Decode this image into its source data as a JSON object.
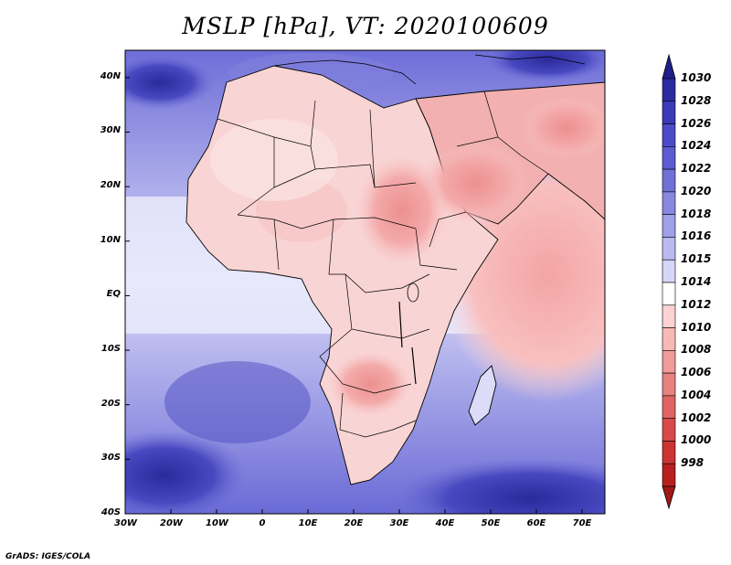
{
  "map": {
    "title": "MSLP [hPa], VT: 2020100609",
    "credit": "GrADS: IGES/COLA",
    "lon_labels": [
      "30W",
      "20W",
      "10W",
      "0",
      "10E",
      "20E",
      "30E",
      "40E",
      "50E",
      "60E",
      "70E"
    ],
    "lat_labels": [
      "40N",
      "30N",
      "20N",
      "10N",
      "EQ",
      "10S",
      "20S",
      "30S",
      "40S"
    ],
    "lon_range": [
      -30,
      75
    ],
    "lat_range": [
      -40,
      45
    ],
    "features": [
      "Africa coastline",
      "country borders",
      "Arabian Peninsula",
      "Madagascar",
      "Mediterranean"
    ]
  },
  "colorbar": {
    "labels": [
      "1030",
      "1028",
      "1026",
      "1024",
      "1022",
      "1020",
      "1018",
      "1016",
      "1015",
      "1014",
      "1012",
      "1010",
      "1008",
      "1006",
      "1004",
      "1002",
      "1000",
      "998"
    ],
    "colors": [
      "#2b2ba0",
      "#3b3bb8",
      "#4b4bc8",
      "#5c5cd0",
      "#7070d8",
      "#8888e0",
      "#a0a0e8",
      "#babaf0",
      "#d6d6f8",
      "#ffffff",
      "#fcd2d2",
      "#f8b8b8",
      "#f09a9a",
      "#e88080",
      "#e06464",
      "#d84a4a",
      "#cc3434",
      "#b82020"
    ],
    "top_cap": "#20208a",
    "bottom_cap": "#a01818"
  }
}
